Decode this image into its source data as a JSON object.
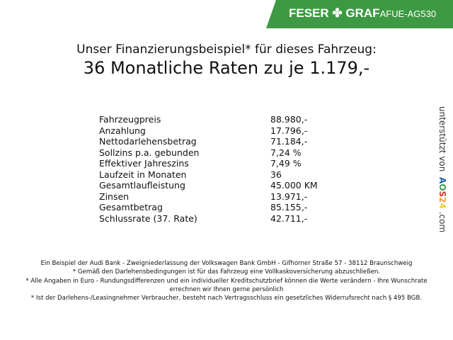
{
  "header": {
    "brand": "FESER",
    "brand2": "GRAF",
    "code": "AFUE-AG530",
    "accent": "#3d9a42"
  },
  "title": {
    "line1": "Unser Finanzierungsbeispiel* für dieses Fahrzeug:",
    "line2": "36 Monatliche Raten zu je 1.179,-"
  },
  "rows": [
    {
      "label": "Fahrzeugpreis",
      "value": "88.980,-"
    },
    {
      "label": "Anzahlung",
      "value": "17.796,-"
    },
    {
      "label": "Nettodarlehensbetrag",
      "value": "71.184,-"
    },
    {
      "label": "Sollzins p.a. gebunden",
      "value": "7,24 %"
    },
    {
      "label": "Effektiver Jahreszins",
      "value": "7,49 %"
    },
    {
      "label": "Laufzeit in Monaten",
      "value": "36"
    },
    {
      "label": "Gesamtlaufleistung",
      "value": "45.000 KM"
    },
    {
      "label": "Zinsen",
      "value": "13.971,-"
    },
    {
      "label": "Gesamtbetrag",
      "value": "85.155,-"
    },
    {
      "label": "Schlussrate (37. Rate)",
      "value": "42.711,-"
    }
  ],
  "side": {
    "prefix": "unterstützt von",
    "a": "A",
    "o": "O",
    "s": "S",
    "n2": "2",
    "n4": "4",
    "suffix": ".com"
  },
  "footer": [
    "Ein Beispiel der Audi Bank - Zweigniederlassung der Volkswagen Bank GmbH - Gifhorner Straße 57 - 38112 Braunschweig",
    "* Gemäß den Darlehensbedingungen ist für das Fahrzeug eine Vollkaskoversicherung abzuschließen.",
    "* Alle Angaben in Euro - Rundungsdifferenzen und ein individueller Kreditschutzbrief können die Werte verändern - Ihre Wunschrate errechnen wir Ihnen gerne persönlich",
    "* Ist der Darlehens-/Leasingnehmer Verbraucher, besteht nach Vertragsschluss ein gesetzliches Widerrufsrecht nach § 495 BGB."
  ]
}
